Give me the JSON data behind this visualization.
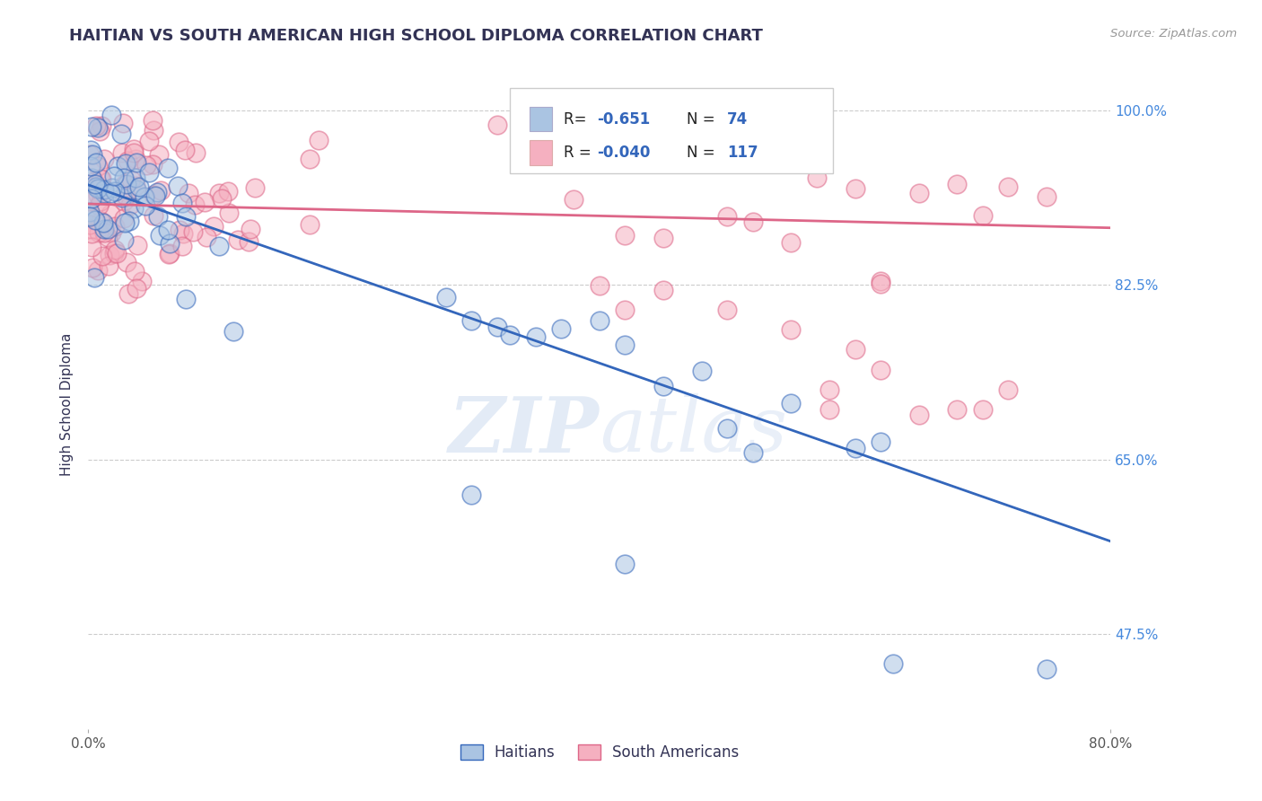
{
  "title": "HAITIAN VS SOUTH AMERICAN HIGH SCHOOL DIPLOMA CORRELATION CHART",
  "source": "Source: ZipAtlas.com",
  "ylabel": "High School Diploma",
  "xlim": [
    0.0,
    0.8
  ],
  "ylim": [
    0.38,
    1.03
  ],
  "xtick_positions": [
    0.0,
    0.8
  ],
  "xtick_labels": [
    "0.0%",
    "80.0%"
  ],
  "ytick_positions": [
    0.475,
    0.65,
    0.825,
    1.0
  ],
  "ytick_labels": [
    "47.5%",
    "65.0%",
    "82.5%",
    "100.0%"
  ],
  "legend_r1": "-0.651",
  "legend_n1": "74",
  "legend_r2": "-0.040",
  "legend_n2": "117",
  "haitian_color": "#aac4e2",
  "south_american_color": "#f5b0c0",
  "trend_blue": "#3366bb",
  "trend_pink": "#dd6688",
  "background_color": "#ffffff",
  "watermark": "ZIPatlas",
  "title_color": "#333355",
  "trend_blue_y0": 0.925,
  "trend_blue_y1": 0.568,
  "trend_pink_y0": 0.906,
  "trend_pink_y1": 0.882,
  "grid_color": "#cccccc",
  "ytick_color": "#4488dd",
  "xtick_color": "#555555"
}
